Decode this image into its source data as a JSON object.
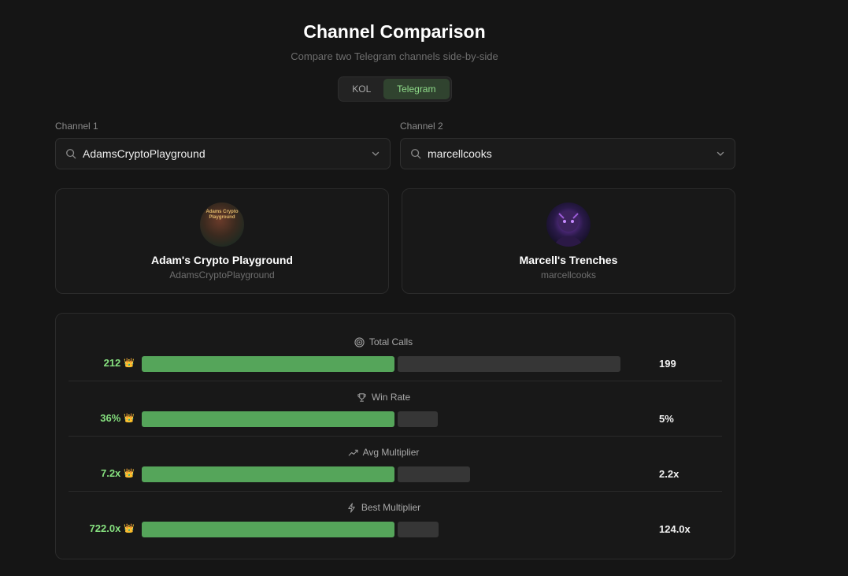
{
  "header": {
    "title": "Channel Comparison",
    "subtitle": "Compare two Telegram channels side-by-side"
  },
  "toggle": {
    "options": [
      "KOL",
      "Telegram"
    ],
    "selected": "Telegram"
  },
  "channel1": {
    "label": "Channel 1",
    "value": "AdamsCryptoPlayground",
    "name": "Adam's Crypto Playground",
    "handle": "AdamsCryptoPlayground",
    "avatar_text": "Adams Crypto Playground"
  },
  "channel2": {
    "label": "Channel 2",
    "value": "marcellcooks",
    "name": "Marcell's Trenches",
    "handle": "marcellcooks"
  },
  "stats": [
    {
      "label": "Total Calls",
      "icon": "target-icon",
      "left": "212",
      "right": "199",
      "left_num": 212,
      "right_num": 199
    },
    {
      "label": "Win Rate",
      "icon": "trophy-icon",
      "left": "36%",
      "right": "5%",
      "left_num": 36,
      "right_num": 5
    },
    {
      "label": "Avg Multiplier",
      "icon": "trending-up-icon",
      "left": "7.2x",
      "right": "2.2x",
      "left_num": 7.2,
      "right_num": 2.2
    },
    {
      "label": "Best Multiplier",
      "icon": "zap-icon",
      "left": "722.0x",
      "right": "124.0x",
      "left_num": 722.0,
      "right_num": 124.0
    }
  ],
  "winner_icon": "crown-icon",
  "winner_glyph": "👑",
  "colors": {
    "accent_green": "#55a55a",
    "winner_text": "#86e07f",
    "loser_bar": "#363636",
    "background": "#151515"
  }
}
